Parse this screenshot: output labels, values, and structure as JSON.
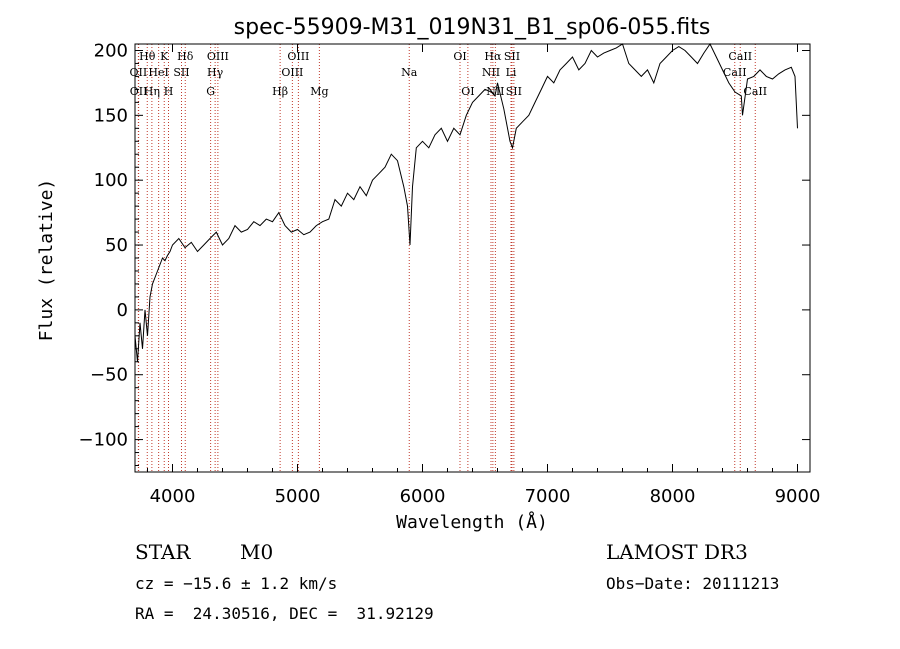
{
  "chart_data": {
    "type": "line",
    "title": "spec-55909-M31_019N31_B1_sp06-055.fits",
    "xlabel": "Wavelength (Å)",
    "ylabel": "Flux (relative)",
    "xlim": [
      3700,
      9100
    ],
    "ylim": [
      -125,
      205
    ],
    "xticks": [
      4000,
      5000,
      6000,
      7000,
      8000,
      9000
    ],
    "yticks": [
      -100,
      -50,
      0,
      50,
      100,
      150,
      200
    ],
    "series": [
      {
        "name": "flux",
        "x": [
          3700,
          3720,
          3740,
          3760,
          3780,
          3800,
          3820,
          3840,
          3860,
          3880,
          3900,
          3920,
          3940,
          3960,
          3980,
          4000,
          4050,
          4100,
          4150,
          4200,
          4250,
          4300,
          4350,
          4400,
          4450,
          4500,
          4550,
          4600,
          4650,
          4700,
          4750,
          4800,
          4850,
          4900,
          4950,
          5000,
          5050,
          5100,
          5150,
          5200,
          5250,
          5300,
          5350,
          5400,
          5450,
          5500,
          5550,
          5600,
          5650,
          5700,
          5750,
          5800,
          5850,
          5880,
          5900,
          5920,
          5950,
          6000,
          6050,
          6100,
          6150,
          6200,
          6250,
          6300,
          6350,
          6400,
          6450,
          6500,
          6550,
          6580,
          6600,
          6650,
          6700,
          6720,
          6750,
          6800,
          6850,
          6900,
          6950,
          7000,
          7050,
          7100,
          7150,
          7200,
          7250,
          7300,
          7350,
          7400,
          7450,
          7500,
          7550,
          7600,
          7650,
          7700,
          7750,
          7800,
          7850,
          7900,
          7950,
          8000,
          8050,
          8100,
          8150,
          8200,
          8250,
          8300,
          8350,
          8400,
          8450,
          8500,
          8550,
          8560,
          8600,
          8650,
          8700,
          8750,
          8800,
          8850,
          8900,
          8950,
          8980,
          9000
        ],
        "y": [
          -20,
          -40,
          -10,
          -30,
          0,
          -20,
          10,
          20,
          25,
          30,
          35,
          40,
          38,
          42,
          45,
          50,
          55,
          48,
          52,
          45,
          50,
          55,
          60,
          50,
          55,
          65,
          60,
          62,
          68,
          65,
          70,
          68,
          75,
          65,
          60,
          62,
          58,
          60,
          65,
          68,
          70,
          85,
          80,
          90,
          85,
          95,
          88,
          100,
          105,
          110,
          120,
          115,
          95,
          80,
          50,
          95,
          125,
          130,
          125,
          135,
          140,
          130,
          140,
          135,
          150,
          160,
          165,
          170,
          168,
          165,
          175,
          155,
          130,
          125,
          140,
          145,
          150,
          160,
          170,
          180,
          175,
          185,
          190,
          195,
          185,
          190,
          200,
          195,
          198,
          200,
          202,
          205,
          190,
          185,
          180,
          185,
          175,
          190,
          195,
          200,
          203,
          200,
          195,
          190,
          198,
          205,
          195,
          185,
          175,
          168,
          165,
          150,
          178,
          180,
          185,
          180,
          178,
          182,
          185,
          187,
          180,
          140
        ]
      }
    ],
    "emission_lines": [
      {
        "name": "Hθ",
        "wavelength": 3798,
        "row": 1
      },
      {
        "name": "OII",
        "wavelength": 3727,
        "row": 2
      },
      {
        "name": "OII",
        "wavelength": 3729,
        "row": 3
      },
      {
        "name": "HeI",
        "wavelength": 3889,
        "row": 2
      },
      {
        "name": "Hη",
        "wavelength": 3835,
        "row": 3
      },
      {
        "name": "K",
        "wavelength": 3934,
        "row": 1
      },
      {
        "name": "H",
        "wavelength": 3968,
        "row": 3
      },
      {
        "name": "SII",
        "wavelength": 4072,
        "row": 2
      },
      {
        "name": "Hδ",
        "wavelength": 4102,
        "row": 1
      },
      {
        "name": "OIII",
        "wavelength": 4363,
        "row": 1
      },
      {
        "name": "Hγ",
        "wavelength": 4341,
        "row": 2
      },
      {
        "name": "G",
        "wavelength": 4305,
        "row": 3
      },
      {
        "name": "OIII",
        "wavelength": 5007,
        "row": 1
      },
      {
        "name": "OIII",
        "wavelength": 4959,
        "row": 2
      },
      {
        "name": "Hβ",
        "wavelength": 4861,
        "row": 3
      },
      {
        "name": "Mg",
        "wavelength": 5175,
        "row": 3
      },
      {
        "name": "Na",
        "wavelength": 5894,
        "row": 2
      },
      {
        "name": "OI",
        "wavelength": 6300,
        "row": 1
      },
      {
        "name": "OI",
        "wavelength": 6363,
        "row": 3
      },
      {
        "name": "Hα",
        "wavelength": 6563,
        "row": 1
      },
      {
        "name": "SII",
        "wavelength": 6716,
        "row": 1
      },
      {
        "name": "NII",
        "wavelength": 6548,
        "row": 2
      },
      {
        "name": "Li",
        "wavelength": 6708,
        "row": 2
      },
      {
        "name": "NII",
        "wavelength": 6583,
        "row": 3
      },
      {
        "name": "SII",
        "wavelength": 6731,
        "row": 3
      },
      {
        "name": "CaII",
        "wavelength": 8542,
        "row": 1
      },
      {
        "name": "CaII",
        "wavelength": 8498,
        "row": 2
      },
      {
        "name": "CaII",
        "wavelength": 8662,
        "row": 3
      }
    ]
  },
  "info": {
    "class": "STAR",
    "subclass": "M0",
    "survey": "LAMOST DR3",
    "cz": "cz = −15.6 ± 1.2 km/s",
    "obs_date": "Obs−Date: 20111213",
    "coords": "RA =  24.30516, DEC =  31.92129"
  },
  "colors": {
    "line_marker": "#c0392b",
    "spectrum": "#000000"
  }
}
